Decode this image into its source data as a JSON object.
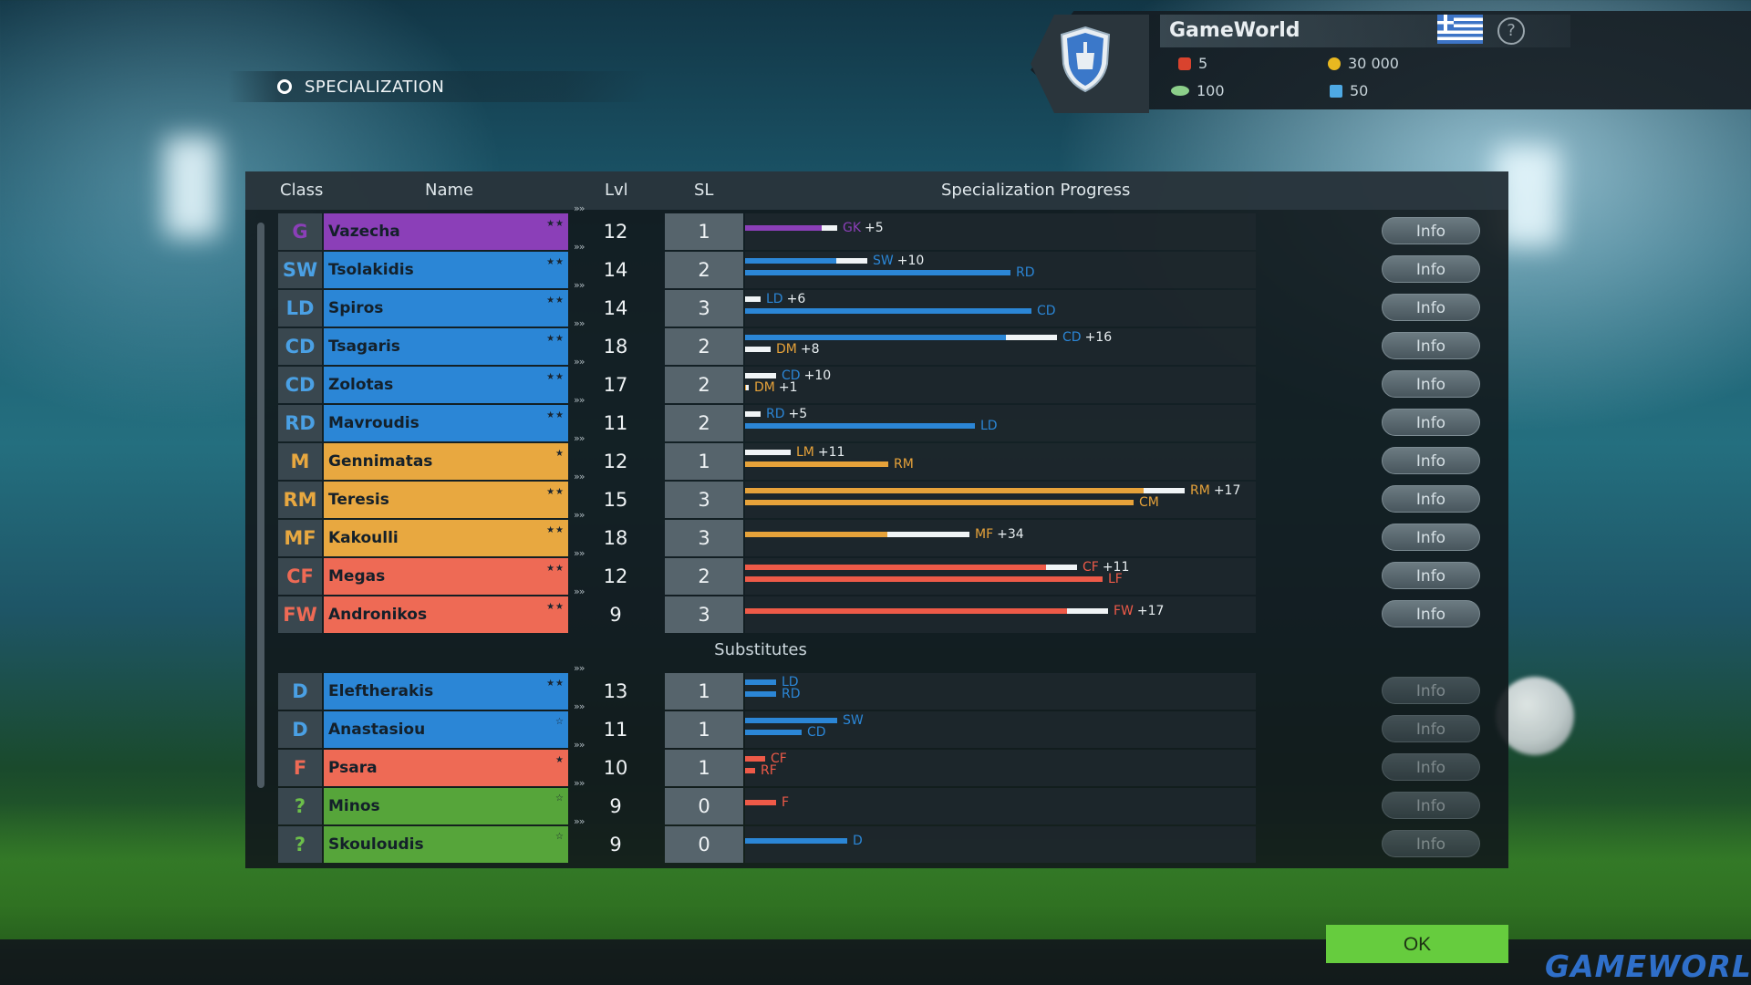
{
  "header": {
    "title": "SPECIALIZATION"
  },
  "club": {
    "name": "GameWorld",
    "stats": [
      {
        "icon": "red-token-icon",
        "value": "5"
      },
      {
        "icon": "gold-coin-icon",
        "value": "30 000"
      },
      {
        "icon": "green-disc-icon",
        "value": "100"
      },
      {
        "icon": "jersey-icon",
        "value": "50"
      }
    ]
  },
  "table": {
    "columns": {
      "class": "Class",
      "name": "Name",
      "lvl": "Lvl",
      "sl": "SL",
      "progress": "Specialization Progress"
    },
    "info_label": "Info",
    "substitutes_label": "Substitutes",
    "starters": [
      {
        "cls": "G",
        "name": "Vazecha",
        "stars": "★★",
        "lvl": "12",
        "sl": "1",
        "color": "#8b3fb8",
        "clsColor": "#8b3fb8",
        "bars": [
          {
            "len": 0.18,
            "hi": 0.03,
            "color": "#8b3fb8",
            "label": "GK",
            "bonus": "+5"
          }
        ]
      },
      {
        "cls": "SW",
        "name": "Tsolakidis",
        "stars": "★★",
        "lvl": "14",
        "sl": "2",
        "color": "#2b86d6",
        "clsColor": "#4aa0e4",
        "bars": [
          {
            "len": 0.24,
            "hi": 0.06,
            "color": "#2b86d6",
            "label": "SW",
            "bonus": "+10"
          },
          {
            "len": 0.52,
            "hi": 0,
            "color": "#2b86d6",
            "label": "RD",
            "bonus": ""
          }
        ]
      },
      {
        "cls": "LD",
        "name": "Spiros",
        "stars": "★★",
        "lvl": "14",
        "sl": "3",
        "color": "#2b86d6",
        "clsColor": "#4aa0e4",
        "bars": [
          {
            "len": 0.03,
            "hi": 0.03,
            "color": "#2b86d6",
            "label": "LD",
            "bonus": "+6"
          },
          {
            "len": 0.56,
            "hi": 0,
            "color": "#2b86d6",
            "label": "CD",
            "bonus": ""
          }
        ]
      },
      {
        "cls": "CD",
        "name": "Tsagaris",
        "stars": "★★",
        "lvl": "18",
        "sl": "2",
        "color": "#2b86d6",
        "clsColor": "#4aa0e4",
        "bars": [
          {
            "len": 0.61,
            "hi": 0.1,
            "color": "#2b86d6",
            "label": "CD",
            "bonus": "+16"
          },
          {
            "len": 0.05,
            "hi": 0.05,
            "color": "#e6a23a",
            "label": "DM",
            "bonus": "+8"
          }
        ]
      },
      {
        "cls": "CD",
        "name": "Zolotas",
        "stars": "★★",
        "lvl": "17",
        "sl": "2",
        "color": "#2b86d6",
        "clsColor": "#4aa0e4",
        "bars": [
          {
            "len": 0.06,
            "hi": 0.06,
            "color": "#2b86d6",
            "label": "CD",
            "bonus": "+10"
          },
          {
            "len": 0.005,
            "hi": 0.005,
            "color": "#e6a23a",
            "label": "DM",
            "bonus": "+1"
          }
        ]
      },
      {
        "cls": "RD",
        "name": "Mavroudis",
        "stars": "★★",
        "lvl": "11",
        "sl": "2",
        "color": "#2b86d6",
        "clsColor": "#4aa0e4",
        "bars": [
          {
            "len": 0.03,
            "hi": 0.03,
            "color": "#2b86d6",
            "label": "RD",
            "bonus": "+5"
          },
          {
            "len": 0.45,
            "hi": 0,
            "color": "#2b86d6",
            "label": "LD",
            "bonus": ""
          }
        ]
      },
      {
        "cls": "M",
        "name": "Gennimatas",
        "stars": "★",
        "lvl": "12",
        "sl": "1",
        "color": "#e8a840",
        "clsColor": "#e8a840",
        "bars": [
          {
            "len": 0.09,
            "hi": 0.09,
            "color": "#e6a23a",
            "label": "LM",
            "bonus": "+11"
          },
          {
            "len": 0.28,
            "hi": 0,
            "color": "#e6a23a",
            "label": "RM",
            "bonus": ""
          }
        ]
      },
      {
        "cls": "RM",
        "name": "Teresis",
        "stars": "★★",
        "lvl": "15",
        "sl": "3",
        "color": "#e8a840",
        "clsColor": "#e8a840",
        "bars": [
          {
            "len": 0.86,
            "hi": 0.08,
            "color": "#e6a23a",
            "label": "RM",
            "bonus": "+17"
          },
          {
            "len": 0.76,
            "hi": 0,
            "color": "#e6a23a",
            "label": "CM",
            "bonus": ""
          }
        ]
      },
      {
        "cls": "MF",
        "name": "Kakoulli",
        "stars": "★★",
        "lvl": "18",
        "sl": "3",
        "color": "#e8a840",
        "clsColor": "#e8a840",
        "bars": [
          {
            "len": 0.44,
            "hi": 0.16,
            "color": "#e6a23a",
            "label": "MF",
            "bonus": "+34"
          }
        ]
      },
      {
        "cls": "CF",
        "name": "Megas",
        "stars": "★★",
        "lvl": "12",
        "sl": "2",
        "color": "#ee6a55",
        "clsColor": "#ee6a55",
        "bars": [
          {
            "len": 0.65,
            "hi": 0.06,
            "color": "#ee5a48",
            "label": "CF",
            "bonus": "+11"
          },
          {
            "len": 0.7,
            "hi": 0,
            "color": "#ee5a48",
            "label": "LF",
            "bonus": ""
          }
        ]
      },
      {
        "cls": "FW",
        "name": "Andronikos",
        "stars": "★★",
        "lvl": "9",
        "sl": "3",
        "color": "#ee6a55",
        "clsColor": "#ee6a55",
        "bars": [
          {
            "len": 0.71,
            "hi": 0.08,
            "color": "#ee5a48",
            "label": "FW",
            "bonus": "+17"
          }
        ]
      }
    ],
    "substitutes": [
      {
        "cls": "D",
        "name": "Eleftherakis",
        "stars": "★★",
        "lvl": "13",
        "sl": "1",
        "color": "#2b86d6",
        "clsColor": "#4aa0e4",
        "bars": [
          {
            "len": 0.06,
            "hi": 0,
            "color": "#2b86d6",
            "label": "LD",
            "bonus": ""
          },
          {
            "len": 0.06,
            "hi": 0,
            "color": "#2b86d6",
            "label": "RD",
            "bonus": ""
          }
        ]
      },
      {
        "cls": "D",
        "name": "Anastasiou",
        "stars": "☆",
        "lvl": "11",
        "sl": "1",
        "color": "#2b86d6",
        "clsColor": "#4aa0e4",
        "bars": [
          {
            "len": 0.18,
            "hi": 0,
            "color": "#2b86d6",
            "label": "SW",
            "bonus": ""
          },
          {
            "len": 0.11,
            "hi": 0,
            "color": "#2b86d6",
            "label": "CD",
            "bonus": ""
          }
        ]
      },
      {
        "cls": "F",
        "name": "Psara",
        "stars": "★",
        "lvl": "10",
        "sl": "1",
        "color": "#ee6a55",
        "clsColor": "#ee6a55",
        "bars": [
          {
            "len": 0.04,
            "hi": 0,
            "color": "#ee5a48",
            "label": "CF",
            "bonus": ""
          },
          {
            "len": 0.02,
            "hi": 0,
            "color": "#ee5a48",
            "label": "RF",
            "bonus": ""
          }
        ]
      },
      {
        "cls": "?",
        "name": "Minos",
        "stars": "☆",
        "lvl": "9",
        "sl": "0",
        "color": "#56a53a",
        "clsColor": "#6cbf4a",
        "bars": [
          {
            "len": 0.06,
            "hi": 0,
            "color": "#ee5a48",
            "label": "F",
            "bonus": ""
          }
        ]
      },
      {
        "cls": "?",
        "name": "Skouloudis",
        "stars": "☆",
        "lvl": "9",
        "sl": "0",
        "color": "#56a53a",
        "clsColor": "#6cbf4a",
        "bars": [
          {
            "len": 0.2,
            "hi": 0,
            "color": "#2b86d6",
            "label": "D",
            "bonus": ""
          }
        ]
      }
    ]
  },
  "ok_label": "OK",
  "logo": "GAMEWORLD"
}
